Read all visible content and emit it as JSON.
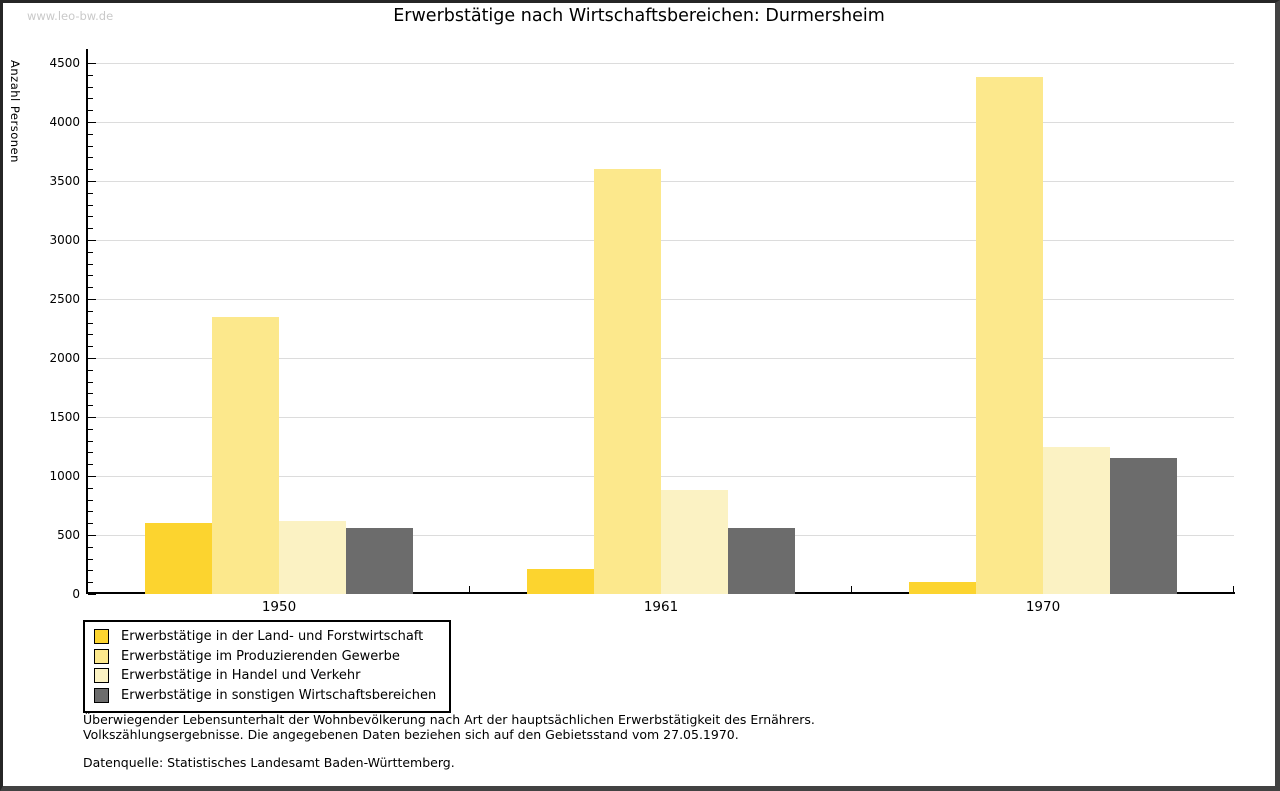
{
  "watermark": "www.leo-bw.de",
  "chart_data": {
    "type": "bar",
    "title": "Erwerbstätige nach Wirtschaftsbereichen: Durmersheim",
    "ylabel": "Anzahl Personen",
    "xlabel": "",
    "categories": [
      "1950",
      "1961",
      "1970"
    ],
    "series": [
      {
        "name": "Erwerbstätige in der Land- und Forstwirtschaft",
        "color": "#FCD42F",
        "values": [
          600,
          215,
          100
        ]
      },
      {
        "name": "Erwerbstätige im Produzierenden Gewerbe",
        "color": "#FCE88C",
        "values": [
          2345,
          3600,
          4385
        ]
      },
      {
        "name": "Erwerbstätige in Handel und Verkehr",
        "color": "#FBF2C3",
        "values": [
          615,
          885,
          1245
        ]
      },
      {
        "name": "Erwerbstätige in sonstigen Wirtschaftsbereichen",
        "color": "#6C6C6C",
        "values": [
          560,
          560,
          1155
        ]
      }
    ],
    "ylim": [
      0,
      4500
    ],
    "ytick_step": 500,
    "minor_tick_step": 100,
    "grid": true,
    "legend_position": "below-left"
  },
  "footnotes": {
    "line1": "Überwiegender Lebensunterhalt der Wohnbevölkerung nach Art der hauptsächlichen Erwerbstätigkeit des Ernährers.",
    "line2": "Volkszählungsergebnisse. Die angegebenen Daten beziehen sich auf den Gebietsstand vom 27.05.1970.",
    "source": "Datenquelle: Statistisches Landesamt Baden-Württemberg."
  }
}
